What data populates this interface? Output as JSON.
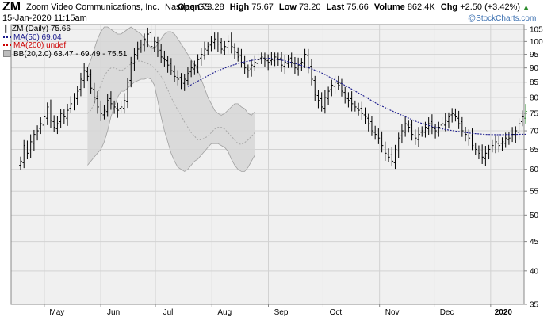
{
  "header": {
    "symbol": "ZM",
    "company": "Zoom Video Communications, Inc.",
    "exchange": "Nasdaq GS",
    "date": "15-Jan-2020 11:15am",
    "open_label": "Open",
    "open": "73.28",
    "high_label": "High",
    "high": "75.67",
    "low_label": "Low",
    "low": "73.20",
    "last_label": "Last",
    "last": "75.66",
    "volume_label": "Volume",
    "volume": "862.4K",
    "chg_label": "Chg",
    "chg": "+2.50 (+3.42%)",
    "chg_icon": "triangle-up-icon",
    "watermark": "@StockCharts.com"
  },
  "legend": [
    {
      "text": "ZM (Daily) 75.66",
      "color": "#000000",
      "icon": "price-bar-icon"
    },
    {
      "text": "MA(50) 69.04",
      "color": "#1a1a8c",
      "icon": "dotted-line-icon"
    },
    {
      "text": "MA(200) undef",
      "color": "#cc0000",
      "icon": "dotted-line-icon"
    },
    {
      "text": "BB(20,2.0) 63.47 - 69.49 - 75.51",
      "color": "#999999",
      "icon": "band-swatch-icon"
    }
  ],
  "colors": {
    "plot_bg": "#f0f0f0",
    "grid": "#d2d2d2",
    "band_fill": "#d6d6d6",
    "band_edge": "#a0a0a0",
    "ma50": "#1a1a8c",
    "bar": "#000000",
    "last_bar": "#2c8c2c",
    "watermark": "#3a6fb0"
  },
  "chart_data": {
    "type": "ohlc",
    "title": "ZM (Daily)",
    "ylim": [
      35,
      107
    ],
    "yscale": "log",
    "y_ticks": [
      35,
      40,
      45,
      50,
      55,
      60,
      65,
      70,
      75,
      80,
      85,
      90,
      95,
      100,
      105
    ],
    "grid": true,
    "legend_position": "top-left",
    "x_tick_labels": [
      "May",
      "Jun",
      "Jul",
      "Aug",
      "Sep",
      "Oct",
      "Nov",
      "Dec",
      "2020"
    ],
    "x_range": [
      "2019-04-18",
      "2020-01-15"
    ],
    "series": [
      {
        "name": "ZM (Daily)",
        "kind": "ohlc",
        "closes": [
          62,
          66,
          64,
          67,
          69,
          70,
          72,
          74,
          77,
          73,
          71,
          72,
          75,
          74,
          76,
          78,
          80,
          82,
          86,
          89,
          87,
          83,
          80,
          77,
          75,
          76,
          79,
          78,
          77,
          76,
          77,
          79,
          85,
          92,
          95,
          97,
          99,
          101,
          103,
          98,
          100,
          96,
          94,
          93,
          91,
          89,
          87,
          86,
          85,
          86,
          88,
          90,
          91,
          93,
          95,
          97,
          98,
          100,
          101,
          99,
          97,
          98,
          100,
          98,
          96,
          94,
          92,
          90,
          89,
          91,
          92,
          93,
          94,
          93,
          92,
          93,
          94,
          93,
          91,
          92,
          93,
          92,
          90,
          91,
          92,
          95,
          90,
          86,
          81,
          79,
          77,
          80,
          82,
          84,
          85,
          84,
          82,
          80,
          79,
          78,
          77,
          76,
          75,
          74,
          72,
          70,
          69,
          68,
          66,
          64,
          63,
          62,
          65,
          68,
          70,
          72,
          71,
          69,
          68,
          69,
          70,
          71,
          72,
          71,
          70,
          71,
          72,
          73,
          74,
          75,
          74,
          72,
          70,
          69,
          68,
          66,
          65,
          64,
          63,
          64,
          65,
          66,
          67,
          66,
          67,
          68,
          68,
          69,
          70,
          72,
          74,
          75.66
        ]
      },
      {
        "name": "MA(50)",
        "kind": "line",
        "start_index": 50,
        "values": [
          83.5,
          86.0,
          88.5,
          90.5,
          92.0,
          93.0,
          93.5,
          92.8,
          91.5,
          90.0,
          88.0,
          85.5,
          83.0,
          80.5,
          78.0,
          76.0,
          74.2,
          72.5,
          71.3,
          70.4,
          69.8,
          69.3,
          69.0,
          68.9,
          69.0,
          69.04
        ]
      },
      {
        "name": "BB(20,2.0)",
        "kind": "band",
        "start_index": 20,
        "upper": [
          90,
          93,
          97,
          101,
          104,
          106,
          106,
          105,
          104,
          103,
          103,
          104,
          105,
          106,
          105,
          104,
          103,
          101,
          99,
          97.5,
          97,
          99,
          101,
          103,
          104,
          104,
          103,
          101,
          99,
          97,
          95,
          93,
          91,
          89,
          86,
          83,
          80,
          78,
          76,
          75,
          74.5,
          75,
          76,
          77,
          78,
          78,
          77,
          76.5,
          75,
          74.5,
          75.51
        ],
        "middle": [
          75,
          76,
          78,
          81,
          84,
          87,
          89,
          90,
          90,
          89.5,
          89,
          89.5,
          90.5,
          91.5,
          92,
          92.5,
          92.5,
          92,
          91.5,
          91,
          90,
          88.5,
          87,
          85,
          82.5,
          80,
          78,
          76,
          74.5,
          72.5,
          71,
          69.5,
          68.5,
          67.5,
          67.5,
          68,
          68.5,
          69.5,
          70.5,
          71,
          71,
          70.5,
          69.5,
          68.5,
          67.5,
          66.5,
          66.3,
          66.8,
          67.5,
          68.5,
          69.49
        ],
        "lower": [
          61,
          62,
          63,
          64,
          65,
          67,
          70,
          74,
          77,
          80,
          82,
          82,
          83,
          84,
          85,
          85.5,
          86,
          86,
          86.5,
          86,
          84,
          79,
          74,
          70,
          67,
          64,
          62,
          60.5,
          60,
          59.5,
          60,
          61,
          62,
          62.5,
          63.5,
          64.5,
          65.5,
          66.5,
          66.5,
          66.5,
          66,
          65.5,
          64.5,
          62.5,
          61,
          60,
          59.5,
          59.5,
          60.5,
          62,
          63.47
        ]
      }
    ]
  }
}
